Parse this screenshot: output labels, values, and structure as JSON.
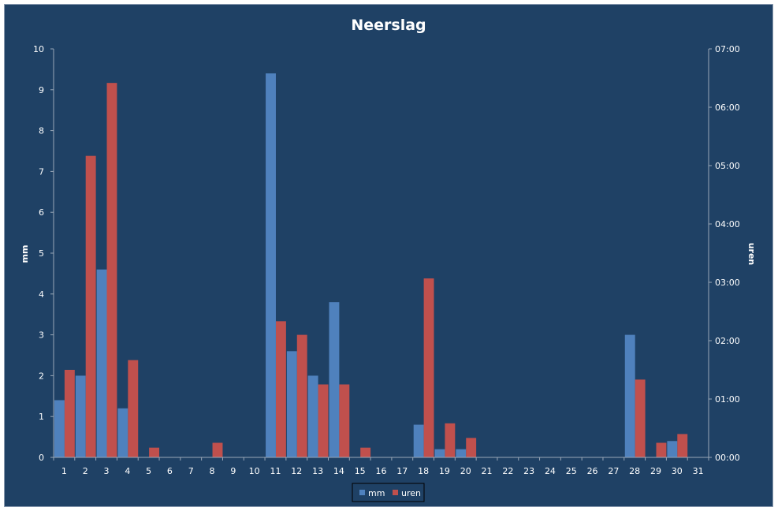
{
  "chart_data": {
    "type": "bar",
    "title": "Neerslag",
    "xlabel": "",
    "ylabel": "mm",
    "ylabel_right": "uren",
    "categories": [
      "1",
      "2",
      "3",
      "4",
      "5",
      "6",
      "7",
      "8",
      "9",
      "10",
      "11",
      "12",
      "13",
      "14",
      "15",
      "16",
      "17",
      "18",
      "19",
      "20",
      "21",
      "22",
      "23",
      "24",
      "25",
      "26",
      "27",
      "28",
      "29",
      "30",
      "31"
    ],
    "ylim": [
      0,
      10
    ],
    "yticks": [
      "0",
      "1",
      "2",
      "3",
      "4",
      "5",
      "6",
      "7",
      "8",
      "9",
      "10"
    ],
    "ylim_right_hours": [
      0,
      7
    ],
    "yticks_right": [
      "00:00",
      "01:00",
      "02:00",
      "03:00",
      "04:00",
      "05:00",
      "06:00",
      "07:00"
    ],
    "grid": false,
    "legend_position": "bottom",
    "series": [
      {
        "name": "mm",
        "axis": "left",
        "color": "#4f81bd",
        "values": [
          1.4,
          2.0,
          4.6,
          1.2,
          0,
          0,
          0,
          0,
          0,
          0,
          9.4,
          2.6,
          2.0,
          3.8,
          0,
          0,
          0,
          0.8,
          0.2,
          0.2,
          0,
          0,
          0,
          0,
          0,
          0,
          0,
          3.0,
          0,
          0.4,
          0
        ]
      },
      {
        "name": "uren",
        "axis": "right",
        "color": "#c0504d",
        "values": [
          "01:30",
          "05:10",
          "06:25",
          "01:40",
          "00:10",
          "00:00",
          "00:00",
          "00:15",
          "00:00",
          "00:00",
          "02:20",
          "02:06",
          "01:15",
          "01:15",
          "00:10",
          "00:00",
          "00:00",
          "03:04",
          "00:35",
          "00:20",
          "00:00",
          "00:00",
          "00:00",
          "00:00",
          "00:00",
          "00:00",
          "00:00",
          "01:20",
          "00:15",
          "00:24",
          "00:00"
        ]
      }
    ]
  }
}
